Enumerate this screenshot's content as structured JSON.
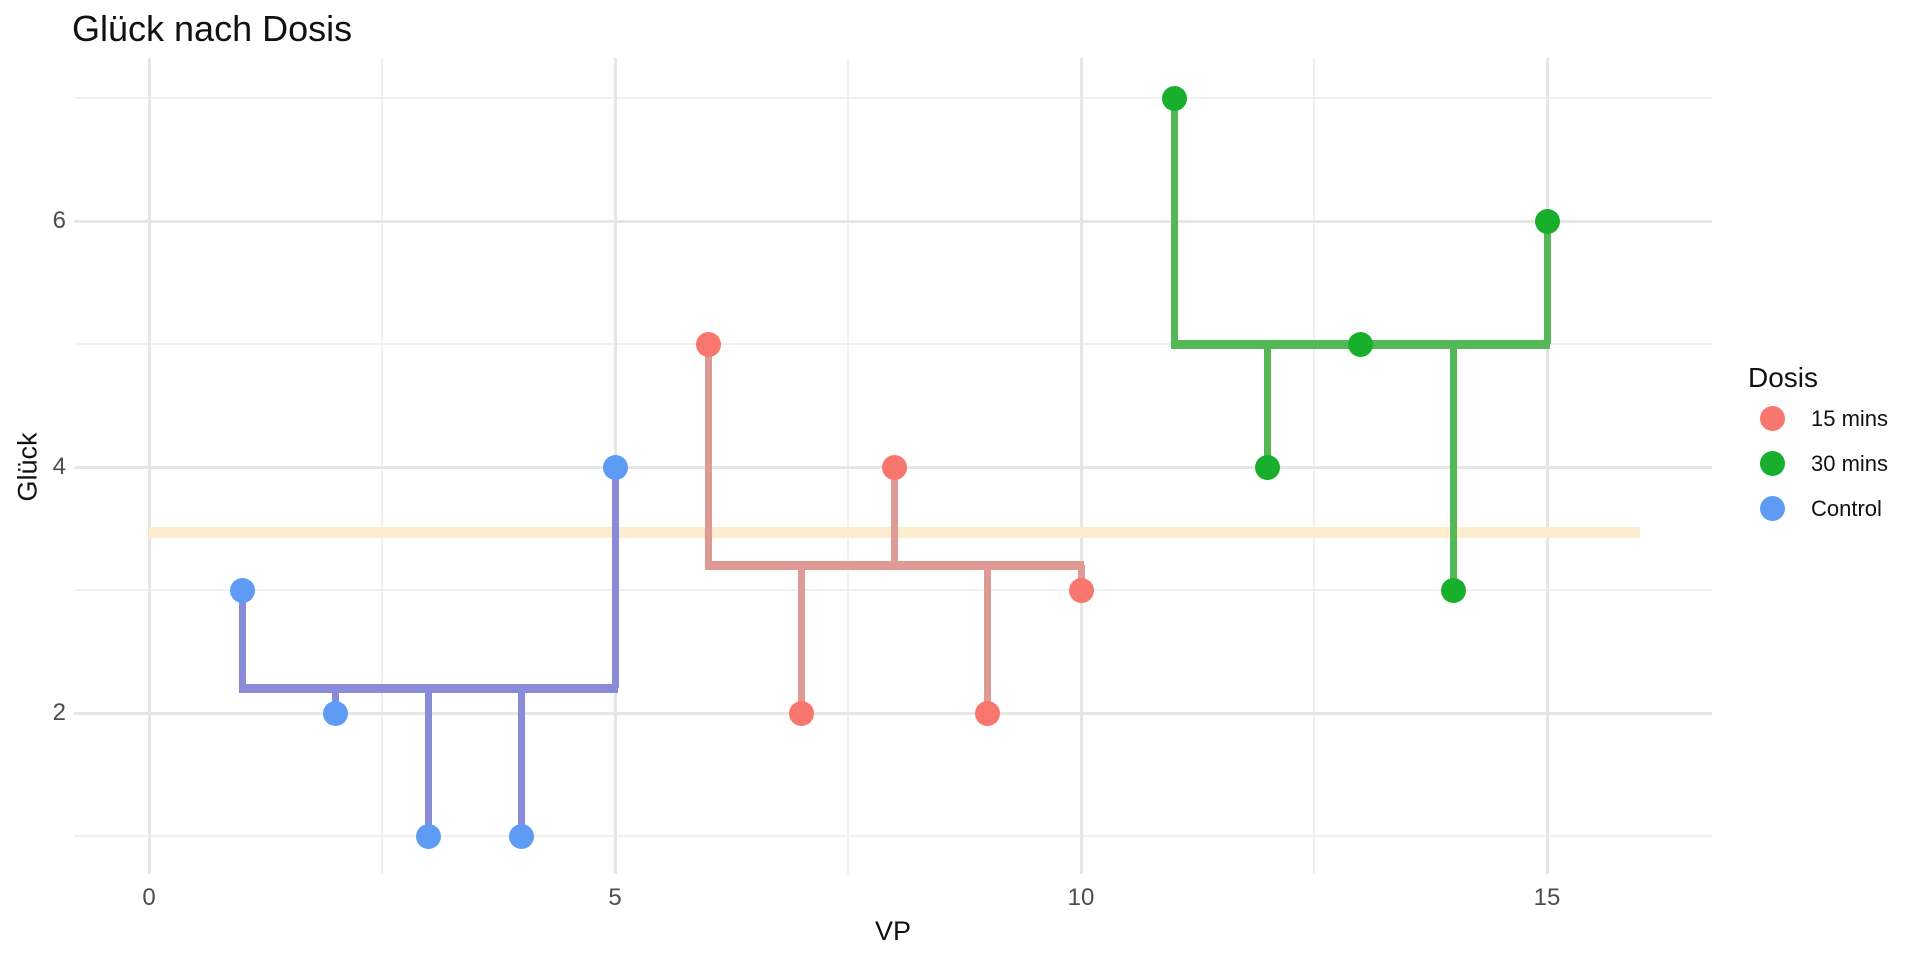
{
  "chart_data": {
    "type": "scatter",
    "title": "Glück nach Dosis",
    "xlabel": "VP",
    "ylabel": "Glück",
    "legend_title": "Dosis",
    "x_ticks": [
      0,
      5,
      10,
      15
    ],
    "y_ticks": [
      2,
      4,
      6
    ],
    "x_minor_ticks": [
      2.5,
      7.5,
      12.5
    ],
    "y_minor_ticks": [
      1,
      3,
      5,
      7
    ],
    "xlim": [
      -0.8,
      16.8
    ],
    "ylim": [
      0.7,
      7.3
    ],
    "grid": "on",
    "legend_position": "right",
    "grand_mean": {
      "y": 3.4667,
      "x_start": 0,
      "x_end": 16,
      "color": "#FDECCE"
    },
    "series": [
      {
        "name": "15 mins",
        "point_color": "#F8766D",
        "line_color": "#E09A96",
        "x": [
          6,
          7,
          8,
          9,
          10
        ],
        "y": [
          5,
          2,
          4,
          2,
          3
        ],
        "group_mean": 3.2
      },
      {
        "name": "30 mins",
        "point_color": "#17AF2C",
        "line_color": "#55B857",
        "x": [
          11,
          12,
          13,
          14,
          15
        ],
        "y": [
          7,
          4,
          5,
          3,
          6
        ],
        "group_mean": 5
      },
      {
        "name": "Control",
        "point_color": "#5E9BF5",
        "line_color": "#8A8BD8",
        "x": [
          1,
          2,
          3,
          4,
          5
        ],
        "y": [
          3,
          2,
          1,
          1,
          4
        ],
        "group_mean": 2.2
      }
    ]
  }
}
